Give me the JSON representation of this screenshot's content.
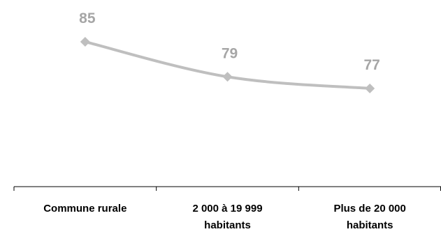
{
  "chart_data": {
    "type": "line",
    "categories": [
      [
        "Commune rurale"
      ],
      [
        "2 000 à 19 999",
        "habitants"
      ],
      [
        "Plus de 20 000",
        "habitants"
      ]
    ],
    "series": [
      {
        "values": [
          85,
          79,
          77
        ],
        "color": "#bfbfbf",
        "marker": "diamond"
      }
    ],
    "data_labels": [
      "85",
      "79",
      "77"
    ],
    "ylim": [
      50,
      90
    ],
    "grid": false,
    "legend": "none",
    "colors": {
      "line": "#bfbfbf",
      "label": "#a6a6a6",
      "axis": "#000000"
    }
  }
}
